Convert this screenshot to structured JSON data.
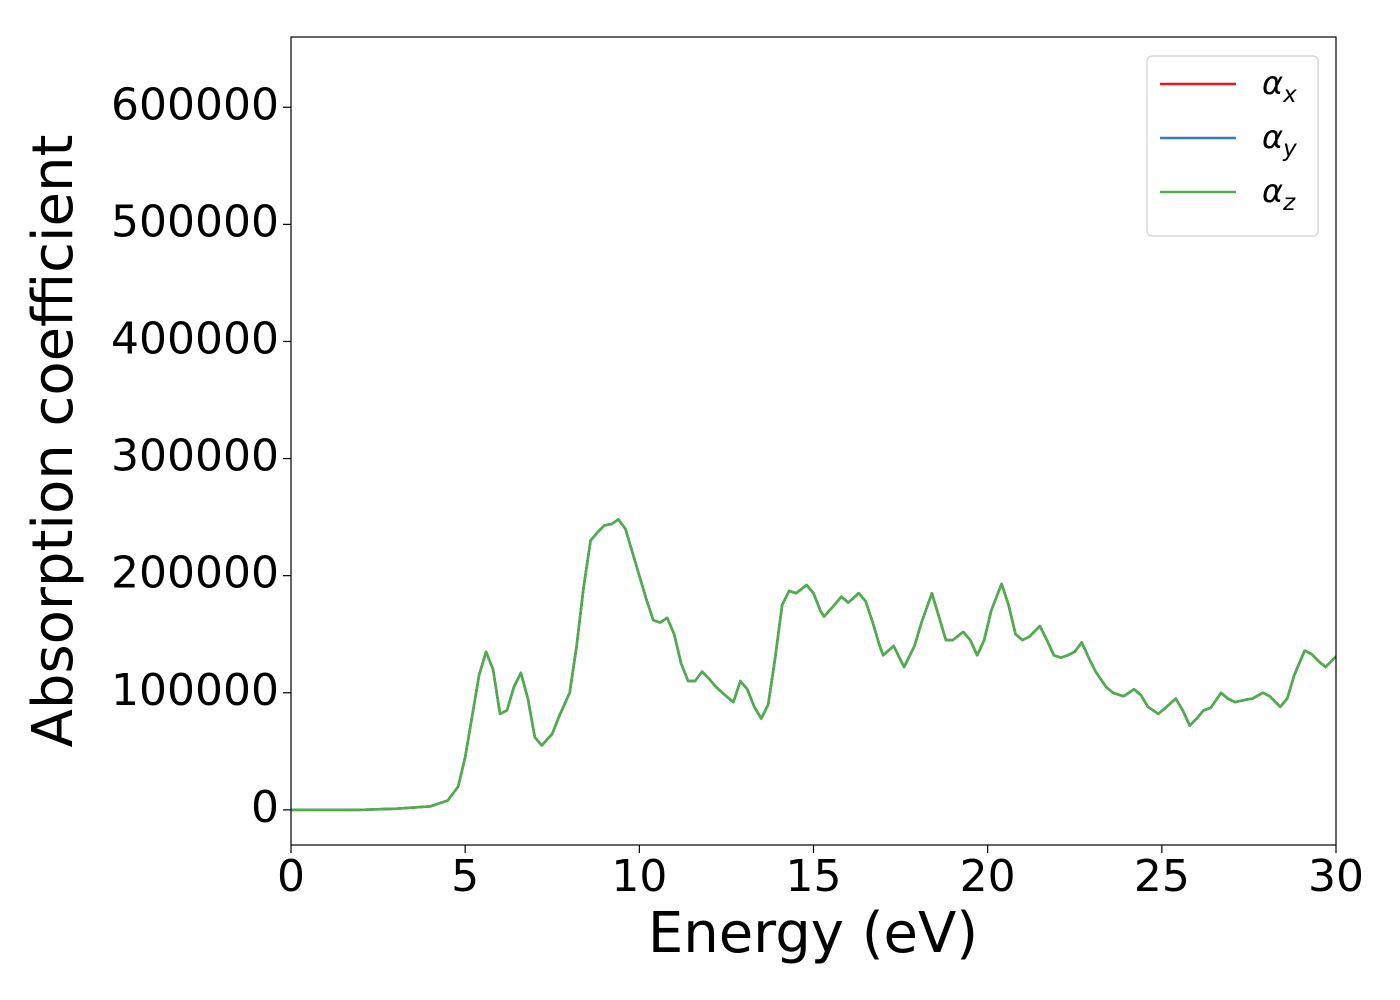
{
  "chart_data": {
    "type": "line",
    "xlabel": "Energy (eV)",
    "ylabel": "Absorption coefficient",
    "xlim": [
      0,
      30
    ],
    "ylim": [
      -30000,
      660000
    ],
    "xticks": [
      0,
      5,
      10,
      15,
      20,
      25,
      30
    ],
    "yticks": [
      0,
      100000,
      200000,
      300000,
      400000,
      500000,
      600000
    ],
    "legend": "upper right",
    "x": [
      0,
      1,
      2,
      3,
      4,
      4.5,
      4.8,
      5.0,
      5.2,
      5.4,
      5.6,
      5.8,
      6.0,
      6.2,
      6.4,
      6.6,
      6.8,
      7.0,
      7.2,
      7.5,
      7.7,
      8.0,
      8.2,
      8.4,
      8.6,
      8.8,
      9.0,
      9.2,
      9.4,
      9.6,
      9.8,
      10.0,
      10.2,
      10.4,
      10.6,
      10.8,
      11.0,
      11.2,
      11.4,
      11.6,
      11.8,
      12.0,
      12.2,
      12.5,
      12.7,
      12.9,
      13.1,
      13.3,
      13.5,
      13.7,
      13.9,
      14.1,
      14.3,
      14.5,
      14.8,
      15.0,
      15.2,
      15.3,
      15.6,
      15.8,
      16.0,
      16.3,
      16.5,
      16.7,
      16.9,
      17.0,
      17.3,
      17.5,
      17.6,
      17.9,
      18.1,
      18.4,
      18.6,
      18.8,
      19.0,
      19.3,
      19.5,
      19.7,
      19.9,
      20.1,
      20.4,
      20.6,
      20.8,
      21.0,
      21.2,
      21.5,
      21.7,
      21.9,
      22.1,
      22.3,
      22.5,
      22.7,
      22.9,
      23.1,
      23.4,
      23.6,
      23.9,
      24.2,
      24.4,
      24.6,
      24.9,
      25.1,
      25.4,
      25.6,
      25.8,
      26.0,
      26.2,
      26.4,
      26.7,
      26.9,
      27.1,
      27.4,
      27.6,
      27.9,
      28.1,
      28.4,
      28.6,
      28.8,
      29.1,
      29.3,
      29.5,
      29.7,
      30.0
    ],
    "series": [
      {
        "name": "αx",
        "color": "#e41a1c",
        "values": [
          0,
          0,
          0,
          1000,
          3000,
          8000,
          20000,
          45000,
          80000,
          115000,
          135000,
          120000,
          82000,
          85000,
          105000,
          117000,
          95000,
          62000,
          55000,
          65000,
          80000,
          100000,
          140000,
          190000,
          230000,
          237000,
          243000,
          244000,
          248000,
          240000,
          220000,
          200000,
          180000,
          162000,
          160000,
          164000,
          150000,
          125000,
          110000,
          110000,
          118000,
          112000,
          105000,
          97000,
          92000,
          110000,
          103000,
          88000,
          78000,
          90000,
          130000,
          175000,
          187000,
          185000,
          192000,
          185000,
          170000,
          165000,
          175000,
          182000,
          177000,
          185000,
          178000,
          160000,
          140000,
          132000,
          140000,
          128000,
          122000,
          140000,
          160000,
          185000,
          165000,
          145000,
          145000,
          152000,
          145000,
          132000,
          145000,
          170000,
          193000,
          175000,
          150000,
          145000,
          148000,
          157000,
          145000,
          132000,
          130000,
          132000,
          135000,
          143000,
          130000,
          118000,
          105000,
          100000,
          97000,
          103000,
          98000,
          88000,
          82000,
          87000,
          95000,
          85000,
          72000,
          78000,
          85000,
          87000,
          100000,
          95000,
          92000,
          94000,
          95000,
          100000,
          97000,
          88000,
          95000,
          115000,
          136000,
          133000,
          127000,
          122000,
          131000
        ]
      },
      {
        "name": "αy",
        "color": "#377eb8",
        "values": [
          0,
          0,
          0,
          1000,
          3000,
          8000,
          20000,
          45000,
          80000,
          115000,
          135000,
          120000,
          82000,
          85000,
          105000,
          117000,
          95000,
          62000,
          55000,
          65000,
          80000,
          100000,
          140000,
          190000,
          230000,
          237000,
          243000,
          244000,
          248000,
          240000,
          220000,
          200000,
          180000,
          162000,
          160000,
          164000,
          150000,
          125000,
          110000,
          110000,
          118000,
          112000,
          105000,
          97000,
          92000,
          110000,
          103000,
          88000,
          78000,
          90000,
          130000,
          175000,
          187000,
          185000,
          192000,
          185000,
          170000,
          165000,
          175000,
          182000,
          177000,
          185000,
          178000,
          160000,
          140000,
          132000,
          140000,
          128000,
          122000,
          140000,
          160000,
          185000,
          165000,
          145000,
          145000,
          152000,
          145000,
          132000,
          145000,
          170000,
          193000,
          175000,
          150000,
          145000,
          148000,
          157000,
          145000,
          132000,
          130000,
          132000,
          135000,
          143000,
          130000,
          118000,
          105000,
          100000,
          97000,
          103000,
          98000,
          88000,
          82000,
          87000,
          95000,
          85000,
          72000,
          78000,
          85000,
          87000,
          100000,
          95000,
          92000,
          94000,
          95000,
          100000,
          97000,
          88000,
          95000,
          115000,
          136000,
          133000,
          127000,
          122000,
          131000
        ]
      },
      {
        "name": "αz",
        "color": "#4daf4a",
        "values": [
          0,
          0,
          0,
          1000,
          3000,
          8000,
          20000,
          45000,
          80000,
          115000,
          135000,
          120000,
          82000,
          85000,
          105000,
          117000,
          95000,
          62000,
          55000,
          65000,
          80000,
          100000,
          140000,
          190000,
          230000,
          237000,
          243000,
          244000,
          248000,
          240000,
          220000,
          200000,
          180000,
          162000,
          160000,
          164000,
          150000,
          125000,
          110000,
          110000,
          118000,
          112000,
          105000,
          97000,
          92000,
          110000,
          103000,
          88000,
          78000,
          90000,
          130000,
          175000,
          187000,
          185000,
          192000,
          185000,
          170000,
          165000,
          175000,
          182000,
          177000,
          185000,
          178000,
          160000,
          140000,
          132000,
          140000,
          128000,
          122000,
          140000,
          160000,
          185000,
          165000,
          145000,
          145000,
          152000,
          145000,
          132000,
          145000,
          170000,
          193000,
          175000,
          150000,
          145000,
          148000,
          157000,
          145000,
          132000,
          130000,
          132000,
          135000,
          143000,
          130000,
          118000,
          105000,
          100000,
          97000,
          103000,
          98000,
          88000,
          82000,
          87000,
          95000,
          85000,
          72000,
          78000,
          85000,
          87000,
          100000,
          95000,
          92000,
          94000,
          95000,
          100000,
          97000,
          88000,
          95000,
          115000,
          136000,
          133000,
          127000,
          122000,
          131000
        ]
      }
    ]
  }
}
